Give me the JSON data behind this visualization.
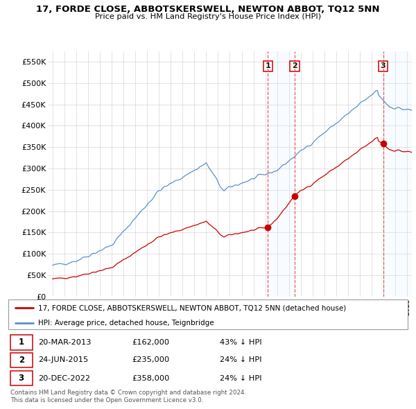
{
  "title": "17, FORDE CLOSE, ABBOTSKERSWELL, NEWTON ABBOT, TQ12 5NN",
  "subtitle": "Price paid vs. HM Land Registry's House Price Index (HPI)",
  "legend_property": "17, FORDE CLOSE, ABBOTSKERSWELL, NEWTON ABBOT, TQ12 5NN (detached house)",
  "legend_hpi": "HPI: Average price, detached house, Teignbridge",
  "footer1": "Contains HM Land Registry data © Crown copyright and database right 2024.",
  "footer2": "This data is licensed under the Open Government Licence v3.0.",
  "property_color": "#cc0000",
  "hpi_color": "#5b8fc9",
  "hpi_fill_color": "#ccddef",
  "transaction_shade_color": "#ddeeff",
  "transactions": [
    {
      "num": 1,
      "date": "20-MAR-2013",
      "price": "£162,000",
      "pct": "43% ↓ HPI",
      "year": 2013.21
    },
    {
      "num": 2,
      "date": "24-JUN-2015",
      "price": "£235,000",
      "pct": "24% ↓ HPI",
      "year": 2015.48
    },
    {
      "num": 3,
      "date": "20-DEC-2022",
      "price": "£358,000",
      "pct": "24% ↓ HPI",
      "year": 2022.97
    }
  ],
  "transaction_prices": [
    162000,
    235000,
    358000
  ],
  "ylim": [
    0,
    575000
  ],
  "yticks": [
    0,
    50000,
    100000,
    150000,
    200000,
    250000,
    300000,
    350000,
    400000,
    450000,
    500000,
    550000
  ],
  "xlim_start": 1994.6,
  "xlim_end": 2025.4,
  "hpi_seed": 42
}
